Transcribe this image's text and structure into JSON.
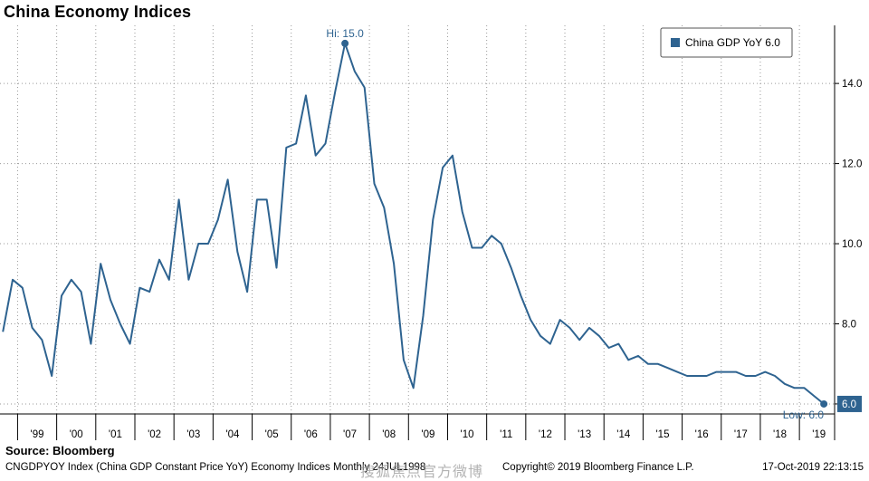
{
  "title": "China Economy Indices",
  "source": "Source: Bloomberg",
  "footer": {
    "left": "CNGDPYOY Index (China GDP Constant Price YoY) Economy Indices  Monthly 24JUL1998",
    "watermark": "搜狐焦点官方微博",
    "copyright": "Copyright© 2019 Bloomberg Finance L.P.",
    "timestamp": "17-Oct-2019 22:13:15"
  },
  "colors": {
    "series": "#2e6390",
    "grid": "#9a9a9a",
    "axis": "#000000"
  },
  "chart_data": {
    "type": "line",
    "title": "China Economy Indices",
    "xlabel": "",
    "ylabel": "",
    "xlim": [
      1998.55,
      2019.9
    ],
    "ylim": [
      5.75,
      15.45
    ],
    "yticks": [
      6.0,
      8.0,
      10.0,
      12.0,
      14.0
    ],
    "ytick_labels": [
      "",
      "8.0",
      "10.0",
      "12.0",
      "14.0"
    ],
    "xticks": [
      1999,
      2000,
      2001,
      2002,
      2003,
      2004,
      2005,
      2006,
      2007,
      2008,
      2009,
      2010,
      2011,
      2012,
      2013,
      2014,
      2015,
      2016,
      2017,
      2018,
      2019
    ],
    "xtick_labels": [
      "'99",
      "'00",
      "'01",
      "'02",
      "'03",
      "'04",
      "'05",
      "'06",
      "'07",
      "'08",
      "'09",
      "'10",
      "'11",
      "'12",
      "'13",
      "'14",
      "'15",
      "'16",
      "'17",
      "'18",
      "'19"
    ],
    "grid": true,
    "legend": {
      "position": "top-right",
      "label": "China GDP YoY 6.0"
    },
    "last_value_label": "6.0",
    "annotations": {
      "high": "Hi: 15.0",
      "low": "Low: 6.0"
    },
    "series": [
      {
        "name": "China GDP YoY",
        "x": [
          1998.625,
          1998.875,
          1999.125,
          1999.375,
          1999.625,
          1999.875,
          2000.125,
          2000.375,
          2000.625,
          2000.875,
          2001.125,
          2001.375,
          2001.625,
          2001.875,
          2002.125,
          2002.375,
          2002.625,
          2002.875,
          2003.125,
          2003.375,
          2003.625,
          2003.875,
          2004.125,
          2004.375,
          2004.625,
          2004.875,
          2005.125,
          2005.375,
          2005.625,
          2005.875,
          2006.125,
          2006.375,
          2006.625,
          2006.875,
          2007.125,
          2007.375,
          2007.625,
          2007.875,
          2008.125,
          2008.375,
          2008.625,
          2008.875,
          2009.125,
          2009.375,
          2009.625,
          2009.875,
          2010.125,
          2010.375,
          2010.625,
          2010.875,
          2011.125,
          2011.375,
          2011.625,
          2011.875,
          2012.125,
          2012.375,
          2012.625,
          2012.875,
          2013.125,
          2013.375,
          2013.625,
          2013.875,
          2014.125,
          2014.375,
          2014.625,
          2014.875,
          2015.125,
          2015.375,
          2015.625,
          2015.875,
          2016.125,
          2016.375,
          2016.625,
          2016.875,
          2017.125,
          2017.375,
          2017.625,
          2017.875,
          2018.125,
          2018.375,
          2018.625,
          2018.875,
          2019.125,
          2019.375,
          2019.625
        ],
        "values": [
          7.8,
          9.1,
          8.9,
          7.9,
          7.6,
          6.7,
          8.7,
          9.1,
          8.8,
          7.5,
          9.5,
          8.6,
          8.0,
          7.5,
          8.9,
          8.8,
          9.6,
          9.1,
          11.1,
          9.1,
          10.0,
          10.0,
          10.6,
          11.6,
          9.8,
          8.8,
          11.1,
          11.1,
          9.4,
          12.4,
          12.5,
          13.7,
          12.2,
          12.5,
          13.8,
          15.0,
          14.3,
          13.9,
          11.5,
          10.9,
          9.5,
          7.1,
          6.4,
          8.2,
          10.6,
          11.9,
          12.2,
          10.8,
          9.9,
          9.9,
          10.2,
          10.0,
          9.4,
          8.7,
          8.1,
          7.7,
          7.5,
          8.1,
          7.9,
          7.6,
          7.9,
          7.7,
          7.4,
          7.5,
          7.1,
          7.2,
          7.0,
          7.0,
          6.9,
          6.8,
          6.7,
          6.7,
          6.7,
          6.8,
          6.8,
          6.8,
          6.7,
          6.7,
          6.8,
          6.7,
          6.5,
          6.4,
          6.4,
          6.2,
          6.0
        ]
      }
    ]
  }
}
